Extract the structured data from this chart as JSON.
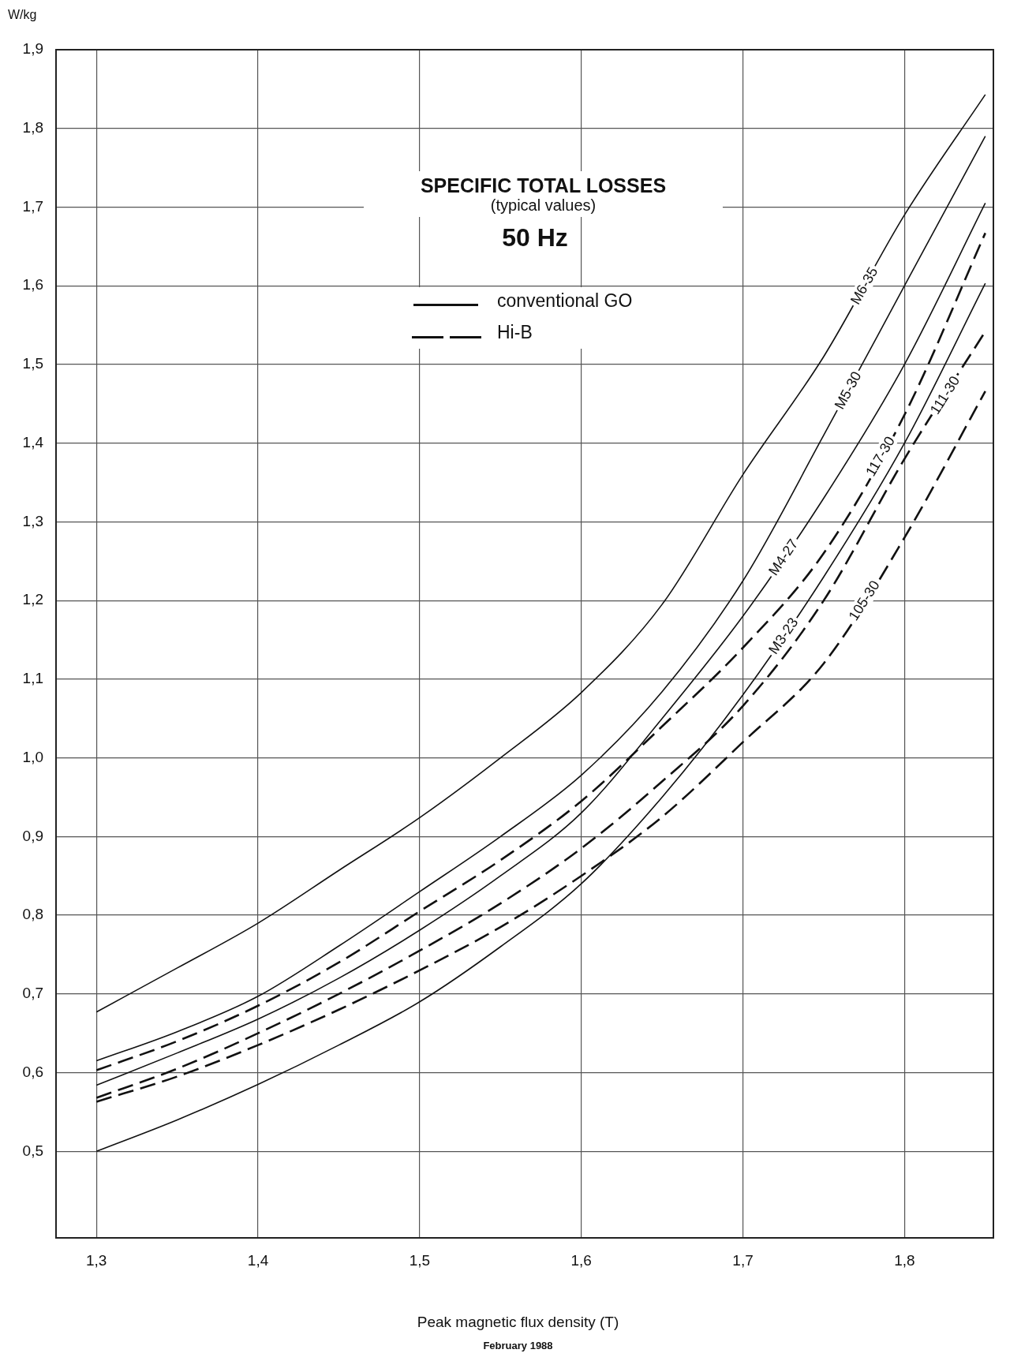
{
  "chart_data": {
    "type": "line",
    "title": "SPECIFIC TOTAL LOSSES",
    "subtitle": "(typical values)",
    "xlabel": "Peak magnetic flux density (T)",
    "ylabel": "W/kg",
    "annotations": [
      "50 Hz",
      "conventional GO",
      "Hi-B",
      "February 1988"
    ],
    "x": [
      1.3,
      1.35,
      1.4,
      1.45,
      1.5,
      1.55,
      1.6,
      1.65,
      1.7,
      1.75,
      1.8,
      1.85
    ],
    "series": [
      {
        "name": "M6-35",
        "color": "#111111",
        "line_style": "solid",
        "values": [
          0.677,
          0.733,
          0.79,
          0.857,
          0.924,
          1.0,
          1.083,
          1.195,
          1.36,
          1.51,
          1.69,
          1.843
        ]
      },
      {
        "name": "M5-30",
        "color": "#111111",
        "line_style": "solid",
        "values": [
          0.615,
          0.652,
          0.697,
          0.761,
          0.83,
          0.9,
          0.978,
          1.084,
          1.225,
          1.41,
          1.6,
          1.79
        ]
      },
      {
        "name": "117-30",
        "color": "#111111",
        "line_style": "dashed",
        "values": [
          0.603,
          0.64,
          0.685,
          0.74,
          0.805,
          0.87,
          0.945,
          1.04,
          1.14,
          1.26,
          1.436,
          1.667
        ]
      },
      {
        "name": "M4-27",
        "color": "#111111",
        "line_style": "solid",
        "values": [
          0.584,
          0.625,
          0.668,
          0.72,
          0.781,
          0.85,
          0.93,
          1.05,
          1.18,
          1.33,
          1.5,
          1.705
        ]
      },
      {
        "name": "111-30",
        "color": "#111111",
        "line_style": "dashed",
        "values": [
          0.568,
          0.605,
          0.65,
          0.7,
          0.755,
          0.815,
          0.885,
          0.97,
          1.066,
          1.2,
          1.38,
          1.542
        ]
      },
      {
        "name": "M3-23",
        "color": "#111111",
        "line_style": "solid",
        "values": [
          0.5,
          0.54,
          0.585,
          0.635,
          0.69,
          0.76,
          0.84,
          0.95,
          1.08,
          1.23,
          1.4,
          1.603
        ]
      },
      {
        "name": "105-30",
        "color": "#111111",
        "line_style": "dashed",
        "values": [
          0.563,
          0.595,
          0.635,
          0.68,
          0.73,
          0.785,
          0.85,
          0.925,
          1.02,
          1.12,
          1.28,
          1.466
        ]
      }
    ],
    "xlim": [
      1.275,
      1.855
    ],
    "ylim": [
      0.39,
      1.9
    ],
    "xticks": [
      {
        "value": 1.3,
        "label": "1,3"
      },
      {
        "value": 1.4,
        "label": "1,4"
      },
      {
        "value": 1.5,
        "label": "1,5"
      },
      {
        "value": 1.6,
        "label": "1,6"
      },
      {
        "value": 1.7,
        "label": "1,7"
      },
      {
        "value": 1.8,
        "label": "1,8"
      }
    ],
    "yticks": [
      {
        "value": 0.5,
        "label": "0,5"
      },
      {
        "value": 0.6,
        "label": "0,6"
      },
      {
        "value": 0.7,
        "label": "0,7"
      },
      {
        "value": 0.8,
        "label": "0,8"
      },
      {
        "value": 0.9,
        "label": "0,9"
      },
      {
        "value": 1.0,
        "label": "1,0"
      },
      {
        "value": 1.1,
        "label": "1,1"
      },
      {
        "value": 1.2,
        "label": "1,2"
      },
      {
        "value": 1.3,
        "label": "1,3"
      },
      {
        "value": 1.4,
        "label": "1,4"
      },
      {
        "value": 1.5,
        "label": "1,5"
      },
      {
        "value": 1.6,
        "label": "1,6"
      },
      {
        "value": 1.7,
        "label": "1,7"
      },
      {
        "value": 1.8,
        "label": "1,8"
      },
      {
        "value": 1.9,
        "label": "1,9"
      }
    ],
    "grid": true,
    "marker": "none"
  }
}
